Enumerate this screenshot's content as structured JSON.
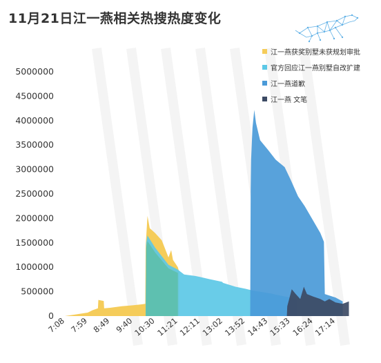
{
  "title": "11月21日江一燕相关热搜热度变化",
  "logo_icon": "leopard-network-icon",
  "colors": {
    "series1": "#f5cc5a",
    "series2": "#5cc8e6",
    "series3": "#4a9ad8",
    "series4": "#3c4a64",
    "overlap_teal": "#5ec0b0"
  },
  "chart_data": {
    "type": "area",
    "title": "11月21日江一燕相关热搜热度变化",
    "xlabel": "",
    "ylabel": "",
    "ylim": [
      0,
      5000000
    ],
    "xlim": [
      "7:08",
      "17:54"
    ],
    "grid": false,
    "legend_position": "top-right",
    "y_ticks": [
      "5000000",
      "4500000",
      "4000000",
      "3500000",
      "3000000",
      "2500000",
      "2000000",
      "1500000",
      "1000000",
      "500000",
      "0"
    ],
    "y_tick_values": [
      5000000,
      4500000,
      4000000,
      3500000,
      3000000,
      2500000,
      2000000,
      1500000,
      1000000,
      500000,
      0
    ],
    "x_ticks": [
      "7:08",
      "7:59",
      "8:49",
      "9:40",
      "10:30",
      "11:21",
      "12:11",
      "13:02",
      "13:52",
      "14:43",
      "15:33",
      "16:24",
      "17:14"
    ],
    "series": [
      {
        "name": "江一燕获奖别墅未获规划审批",
        "color": "#f5cc5a",
        "points": [
          [
            "7:08",
            0
          ],
          [
            "7:30",
            30000
          ],
          [
            "7:59",
            70000
          ],
          [
            "8:10",
            120000
          ],
          [
            "8:22",
            160000
          ],
          [
            "8:23",
            330000
          ],
          [
            "8:35",
            310000
          ],
          [
            "8:36",
            160000
          ],
          [
            "8:49",
            170000
          ],
          [
            "9:15",
            200000
          ],
          [
            "9:40",
            220000
          ],
          [
            "10:00",
            240000
          ],
          [
            "10:08",
            250000
          ],
          [
            "10:09",
            1450000
          ],
          [
            "10:13",
            2050000
          ],
          [
            "10:18",
            1800000
          ],
          [
            "10:30",
            1700000
          ],
          [
            "10:45",
            1550000
          ],
          [
            "11:00",
            1200000
          ],
          [
            "11:06",
            1350000
          ],
          [
            "11:10",
            1150000
          ],
          [
            "11:21",
            1000000
          ],
          [
            "11:24",
            900000
          ]
        ]
      },
      {
        "name": "官方回应江一燕别墅自改扩建",
        "color": "#5cc8e6",
        "points": [
          [
            "10:09",
            0
          ],
          [
            "10:10",
            1500000
          ],
          [
            "10:13",
            1650000
          ],
          [
            "10:30",
            1400000
          ],
          [
            "11:00",
            1050000
          ],
          [
            "11:21",
            950000
          ],
          [
            "11:35",
            850000
          ],
          [
            "12:00",
            820000
          ],
          [
            "12:11",
            800000
          ],
          [
            "12:30",
            760000
          ],
          [
            "13:00",
            700000
          ],
          [
            "13:02",
            680000
          ],
          [
            "13:30",
            600000
          ],
          [
            "13:52",
            560000
          ],
          [
            "14:10",
            520000
          ],
          [
            "14:30",
            490000
          ],
          [
            "14:50",
            460000
          ],
          [
            "15:10",
            420000
          ],
          [
            "15:33",
            380000
          ],
          [
            "15:48",
            340000
          ]
        ]
      },
      {
        "name": "江一燕道歉",
        "color": "#4a9ad8",
        "points": [
          [
            "13:52",
            0
          ],
          [
            "14:03",
            0
          ],
          [
            "14:04",
            2600000
          ],
          [
            "14:05",
            3200000
          ],
          [
            "14:08",
            3850000
          ],
          [
            "14:12",
            4220000
          ],
          [
            "14:16",
            3950000
          ],
          [
            "14:25",
            3600000
          ],
          [
            "14:43",
            3400000
          ],
          [
            "15:00",
            3200000
          ],
          [
            "15:20",
            3050000
          ],
          [
            "15:33",
            2800000
          ],
          [
            "15:50",
            2450000
          ],
          [
            "16:05",
            2250000
          ],
          [
            "16:24",
            1950000
          ],
          [
            "16:40",
            1700000
          ],
          [
            "16:48",
            1520000
          ],
          [
            "16:50",
            450000
          ],
          [
            "17:14",
            380000
          ],
          [
            "17:30",
            300000
          ]
        ]
      },
      {
        "name": "江一燕 文笔",
        "color": "#3c4a64",
        "points": [
          [
            "15:25",
            0
          ],
          [
            "15:26",
            200000
          ],
          [
            "15:36",
            550000
          ],
          [
            "15:45",
            450000
          ],
          [
            "15:55",
            350000
          ],
          [
            "16:03",
            600000
          ],
          [
            "16:10",
            450000
          ],
          [
            "16:24",
            400000
          ],
          [
            "16:40",
            350000
          ],
          [
            "16:50",
            300000
          ],
          [
            "17:00",
            350000
          ],
          [
            "17:14",
            280000
          ],
          [
            "17:30",
            250000
          ],
          [
            "17:44",
            300000
          ]
        ]
      }
    ]
  }
}
